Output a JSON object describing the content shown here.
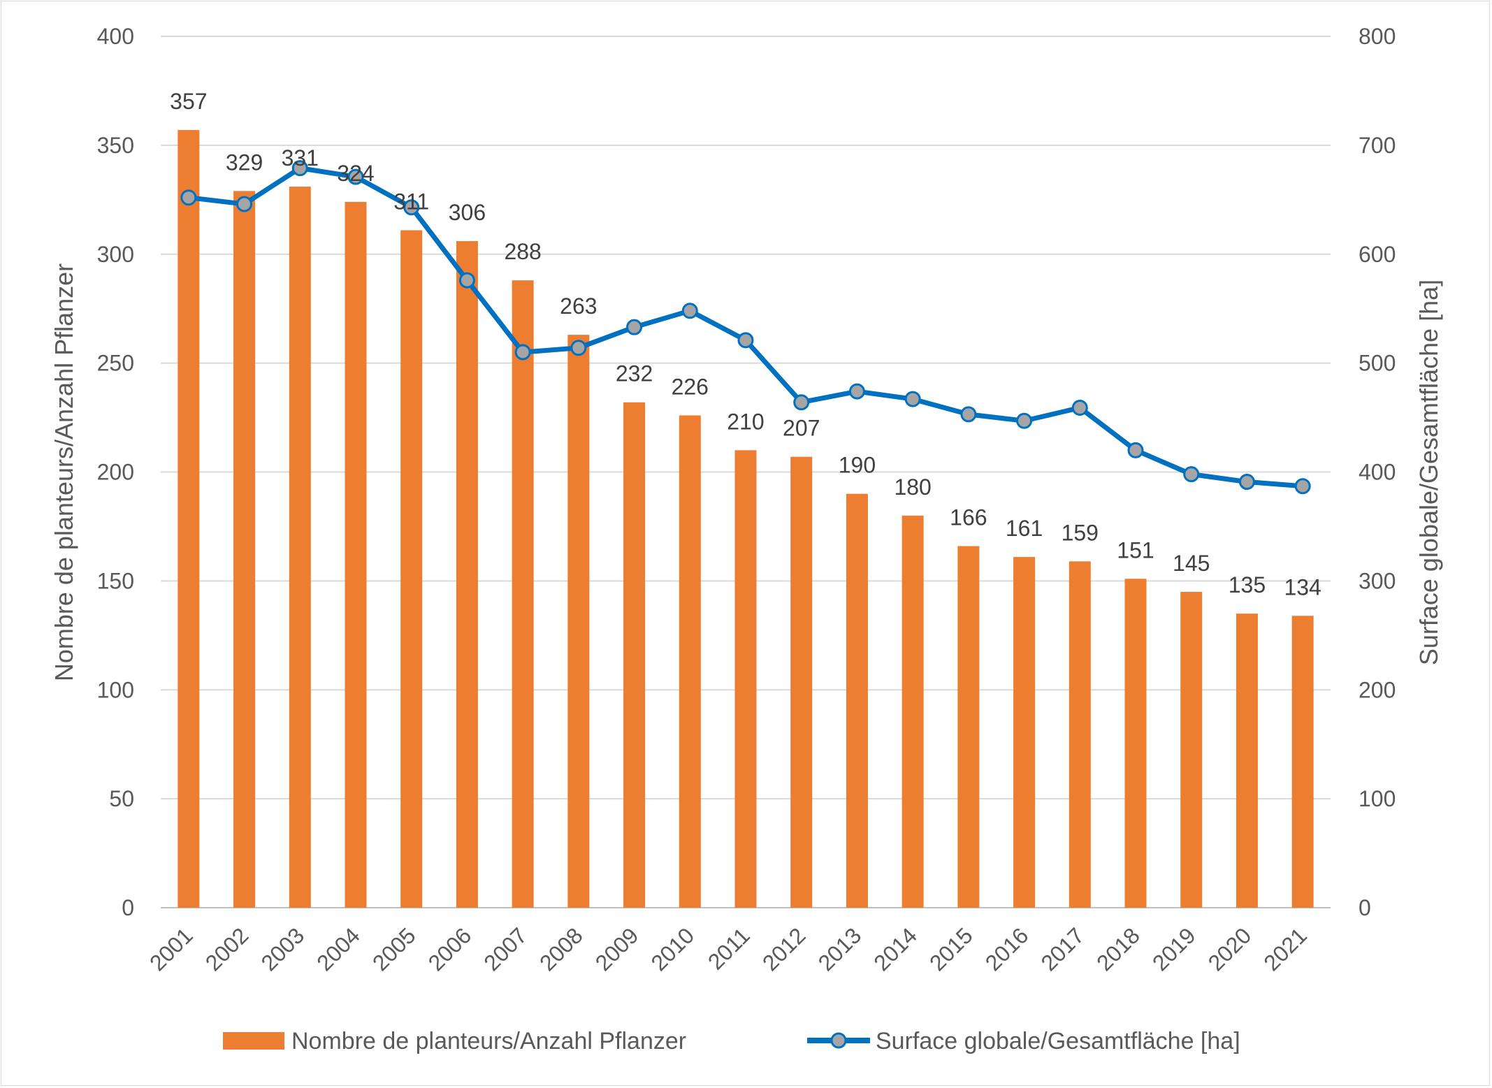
{
  "chart_data": {
    "type": "bar",
    "categories": [
      "2001",
      "2002",
      "2003",
      "2004",
      "2005",
      "2006",
      "2007",
      "2008",
      "2009",
      "2010",
      "2011",
      "2012",
      "2013",
      "2014",
      "2015",
      "2016",
      "2017",
      "2018",
      "2019",
      "2020",
      "2021"
    ],
    "series": [
      {
        "name": "Nombre de planteurs/Anzahl Pflanzer",
        "chart_type": "bar",
        "axis": "left",
        "color": "#ED7D31",
        "values": [
          357,
          329,
          331,
          324,
          311,
          306,
          288,
          263,
          232,
          226,
          210,
          207,
          190,
          180,
          166,
          161,
          159,
          151,
          145,
          135,
          134
        ],
        "data_labels": [
          "357",
          "329",
          "331",
          "324",
          "311",
          "306",
          "288",
          "263",
          "232",
          "226",
          "210",
          "207",
          "190",
          "180",
          "166",
          "161",
          "159",
          "151",
          "145",
          "135",
          "134"
        ]
      },
      {
        "name": "Surface globale/Gesamtfläche [ha]",
        "chart_type": "line",
        "axis": "right",
        "color": "#0070C0",
        "marker_color": "#A5A5A5",
        "values": [
          652,
          646,
          679,
          671,
          643,
          576,
          510,
          514,
          533,
          548,
          521,
          464,
          474,
          467,
          453,
          447,
          459,
          420,
          398,
          391,
          387
        ]
      }
    ],
    "ylabel": "Nombre de planteurs/Anzahl Pflanzer",
    "y2label": "Surface globale/Gesamtfläche [ha]",
    "xlabel": "",
    "ylim": [
      0,
      400
    ],
    "y2lim": [
      0,
      800
    ],
    "yticks": [
      "0",
      "50",
      "100",
      "150",
      "200",
      "250",
      "300",
      "350",
      "400"
    ],
    "y2ticks": [
      "0",
      "100",
      "200",
      "300",
      "400",
      "500",
      "600",
      "700",
      "800"
    ],
    "grid": true,
    "legend_position": "bottom"
  }
}
